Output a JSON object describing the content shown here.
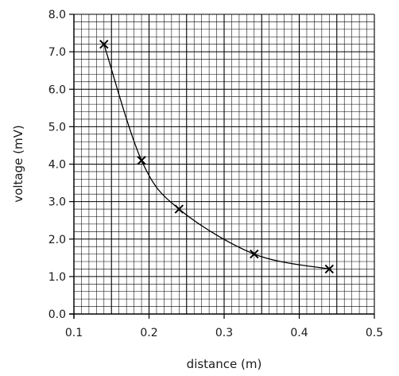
{
  "chart_data": {
    "type": "scatter",
    "title": "",
    "xlabel": "distance (m)",
    "ylabel": "voltage (mV)",
    "xlim": [
      0.1,
      0.5
    ],
    "ylim": [
      0.0,
      8.0
    ],
    "x_ticks": [
      "0.1",
      "0.2",
      "0.3",
      "0.4",
      "0.5"
    ],
    "y_ticks": [
      "0.0",
      "1.0",
      "2.0",
      "3.0",
      "4.0",
      "5.0",
      "6.0",
      "7.0",
      "8.0"
    ],
    "grid": true,
    "marker": "x",
    "trendline": "smooth curve through points",
    "series": [
      {
        "points": [
          {
            "x": 0.14,
            "y": 7.2
          },
          {
            "x": 0.19,
            "y": 4.1
          },
          {
            "x": 0.24,
            "y": 2.8
          },
          {
            "x": 0.34,
            "y": 1.6
          },
          {
            "x": 0.44,
            "y": 1.2
          }
        ]
      }
    ],
    "colors": {
      "grid": "#000000",
      "marker": "#000000",
      "curve": "#000000"
    }
  }
}
